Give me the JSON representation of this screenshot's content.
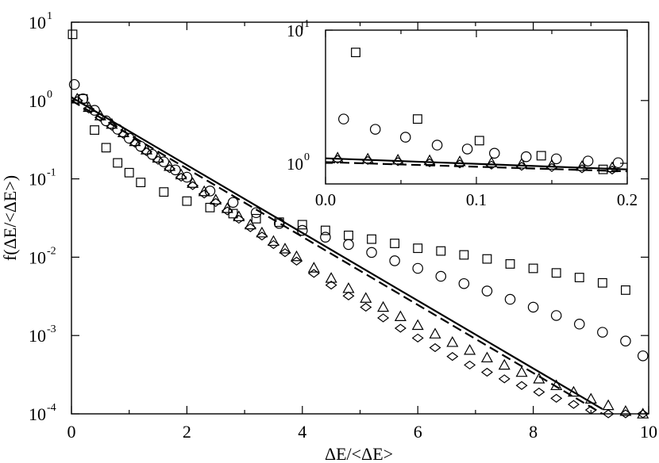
{
  "chart_data": [
    {
      "type": "scatter",
      "title": "",
      "xlabel": "ΔE/<ΔE>",
      "ylabel": "f(ΔE/<ΔE>)",
      "xlim": [
        0,
        10
      ],
      "ylim": [
        0.0001,
        10
      ],
      "yscale": "log",
      "grid": false,
      "x_ticks": [
        0,
        2,
        4,
        6,
        8,
        10
      ],
      "x_tick_labels": [
        "0",
        "2",
        "4",
        "6",
        "8",
        "10"
      ],
      "y_ticks": [
        {
          "value": 10,
          "base": "10",
          "exp": "1"
        },
        {
          "value": 1,
          "base": "10",
          "exp": "0"
        },
        {
          "value": 0.1,
          "base": "10",
          "exp": "-1"
        },
        {
          "value": 0.01,
          "base": "10",
          "exp": "-2"
        },
        {
          "value": 0.001,
          "base": "10",
          "exp": "-3"
        },
        {
          "value": 0.0001,
          "base": "10",
          "exp": "-4"
        }
      ],
      "series": [
        {
          "marker": "square",
          "x": [
            0.02,
            0.2,
            0.4,
            0.6,
            0.8,
            1.0,
            1.2,
            1.6,
            2.0,
            2.4,
            2.8,
            3.2,
            3.6,
            4.0,
            4.4,
            4.8,
            5.2,
            5.6,
            6.0,
            6.4,
            6.8,
            7.2,
            7.6,
            8.0,
            8.4,
            8.8,
            9.2,
            9.6
          ],
          "y": [
            7.0,
            1.05,
            0.42,
            0.25,
            0.16,
            0.12,
            0.09,
            0.068,
            0.052,
            0.043,
            0.036,
            0.031,
            0.028,
            0.026,
            0.022,
            0.019,
            0.017,
            0.015,
            0.013,
            0.012,
            0.0107,
            0.0095,
            0.0082,
            0.0072,
            0.0063,
            0.0055,
            0.0047,
            0.0038
          ]
        },
        {
          "marker": "circle",
          "x": [
            0.05,
            0.2,
            0.4,
            0.6,
            0.8,
            1.0,
            1.2,
            1.4,
            1.6,
            1.8,
            2.0,
            2.4,
            2.8,
            3.2,
            3.6,
            4.0,
            4.4,
            4.8,
            5.2,
            5.6,
            6.0,
            6.4,
            6.8,
            7.2,
            7.6,
            8.0,
            8.4,
            8.8,
            9.2,
            9.6,
            9.9
          ],
          "y": [
            1.6,
            1.05,
            0.75,
            0.55,
            0.43,
            0.33,
            0.26,
            0.205,
            0.165,
            0.13,
            0.105,
            0.07,
            0.05,
            0.037,
            0.027,
            0.022,
            0.018,
            0.0145,
            0.0115,
            0.009,
            0.0072,
            0.0057,
            0.0046,
            0.0037,
            0.0029,
            0.0023,
            0.0018,
            0.0014,
            0.0011,
            0.00085,
            0.00055
          ]
        },
        {
          "marker": "triangle",
          "x": [
            0.1,
            0.3,
            0.5,
            0.7,
            0.9,
            1.1,
            1.3,
            1.5,
            1.7,
            1.9,
            2.1,
            2.3,
            2.5,
            2.7,
            2.9,
            3.1,
            3.3,
            3.5,
            3.7,
            3.9,
            4.2,
            4.5,
            4.8,
            5.1,
            5.4,
            5.7,
            6.0,
            6.3,
            6.6,
            6.9,
            7.2,
            7.5,
            7.8,
            8.1,
            8.4,
            8.7,
            9.0,
            9.3,
            9.6,
            9.9
          ],
          "y": [
            1.05,
            0.82,
            0.64,
            0.5,
            0.39,
            0.3,
            0.235,
            0.185,
            0.145,
            0.113,
            0.088,
            0.069,
            0.054,
            0.042,
            0.033,
            0.026,
            0.0205,
            0.016,
            0.0128,
            0.0102,
            0.0073,
            0.0054,
            0.004,
            0.003,
            0.0023,
            0.00175,
            0.00135,
            0.00105,
            0.00082,
            0.00065,
            0.00052,
            0.00042,
            0.00034,
            0.00028,
            0.00023,
            0.00019,
            0.000155,
            0.000128,
            0.000108,
            0.0001
          ]
        },
        {
          "marker": "diamond",
          "x": [
            0.1,
            0.3,
            0.5,
            0.7,
            0.9,
            1.1,
            1.3,
            1.5,
            1.7,
            1.9,
            2.1,
            2.3,
            2.5,
            2.7,
            2.9,
            3.1,
            3.3,
            3.5,
            3.7,
            3.9,
            4.2,
            4.5,
            4.8,
            5.1,
            5.4,
            5.7,
            6.0,
            6.3,
            6.6,
            6.9,
            7.2,
            7.5,
            7.8,
            8.1,
            8.4,
            8.7,
            9.0,
            9.3,
            9.6,
            9.9
          ],
          "y": [
            1.0,
            0.78,
            0.61,
            0.47,
            0.37,
            0.285,
            0.222,
            0.173,
            0.135,
            0.105,
            0.082,
            0.064,
            0.05,
            0.039,
            0.0305,
            0.0238,
            0.0186,
            0.0145,
            0.0114,
            0.0089,
            0.0062,
            0.0044,
            0.0032,
            0.0023,
            0.00168,
            0.00124,
            0.00093,
            0.0007,
            0.00054,
            0.00042,
            0.00034,
            0.00028,
            0.00023,
            0.00019,
            0.000158,
            0.000132,
            0.000112,
            0.0001,
            0.0001,
            0.0001
          ]
        },
        {
          "line": "solid",
          "x": [
            0,
            9.2
          ],
          "y": [
            1.1,
            0.000115
          ]
        },
        {
          "line": "dashed",
          "x": [
            0,
            9.2
          ],
          "y": [
            1.0,
            0.0001
          ]
        }
      ]
    },
    {
      "type": "scatter",
      "title": "",
      "xlabel": "",
      "ylabel": "",
      "xlim": [
        0,
        0.2
      ],
      "ylim": [
        0.7,
        10
      ],
      "yscale": "log",
      "grid": false,
      "x_ticks": [
        0,
        0.1,
        0.2
      ],
      "x_tick_labels": [
        "0.0",
        "0.1",
        "0.2"
      ],
      "y_ticks": [
        {
          "value": 10,
          "base": "10",
          "exp": "1"
        },
        {
          "value": 1,
          "base": "10",
          "exp": "0"
        }
      ],
      "series": [
        {
          "marker": "square",
          "x": [
            0.02,
            0.061,
            0.102,
            0.143,
            0.184
          ],
          "y": [
            6.8,
            2.15,
            1.48,
            1.14,
            0.9
          ]
        },
        {
          "marker": "circle",
          "x": [
            0.012,
            0.033,
            0.053,
            0.074,
            0.094,
            0.112,
            0.133,
            0.153,
            0.174,
            0.194
          ],
          "y": [
            2.15,
            1.8,
            1.57,
            1.37,
            1.28,
            1.19,
            1.12,
            1.08,
            1.04,
            1.01
          ]
        },
        {
          "marker": "triangle",
          "x": [
            0.008,
            0.028,
            0.048,
            0.069,
            0.089,
            0.11,
            0.13,
            0.15,
            0.17,
            0.19
          ],
          "y": [
            1.1,
            1.08,
            1.06,
            1.05,
            1.03,
            1.01,
            0.99,
            0.97,
            0.95,
            0.93
          ]
        },
        {
          "marker": "diamond",
          "x": [
            0.008,
            0.028,
            0.048,
            0.069,
            0.089,
            0.11,
            0.13,
            0.15,
            0.17,
            0.19
          ],
          "y": [
            1.07,
            1.05,
            1.03,
            1.01,
            0.99,
            0.97,
            0.95,
            0.93,
            0.91,
            0.89
          ]
        },
        {
          "line": "solid",
          "x": [
            0,
            0.2
          ],
          "y": [
            1.09,
            0.9
          ]
        },
        {
          "line": "dashed",
          "x": [
            0,
            0.2
          ],
          "y": [
            1.02,
            0.87
          ]
        }
      ]
    }
  ]
}
